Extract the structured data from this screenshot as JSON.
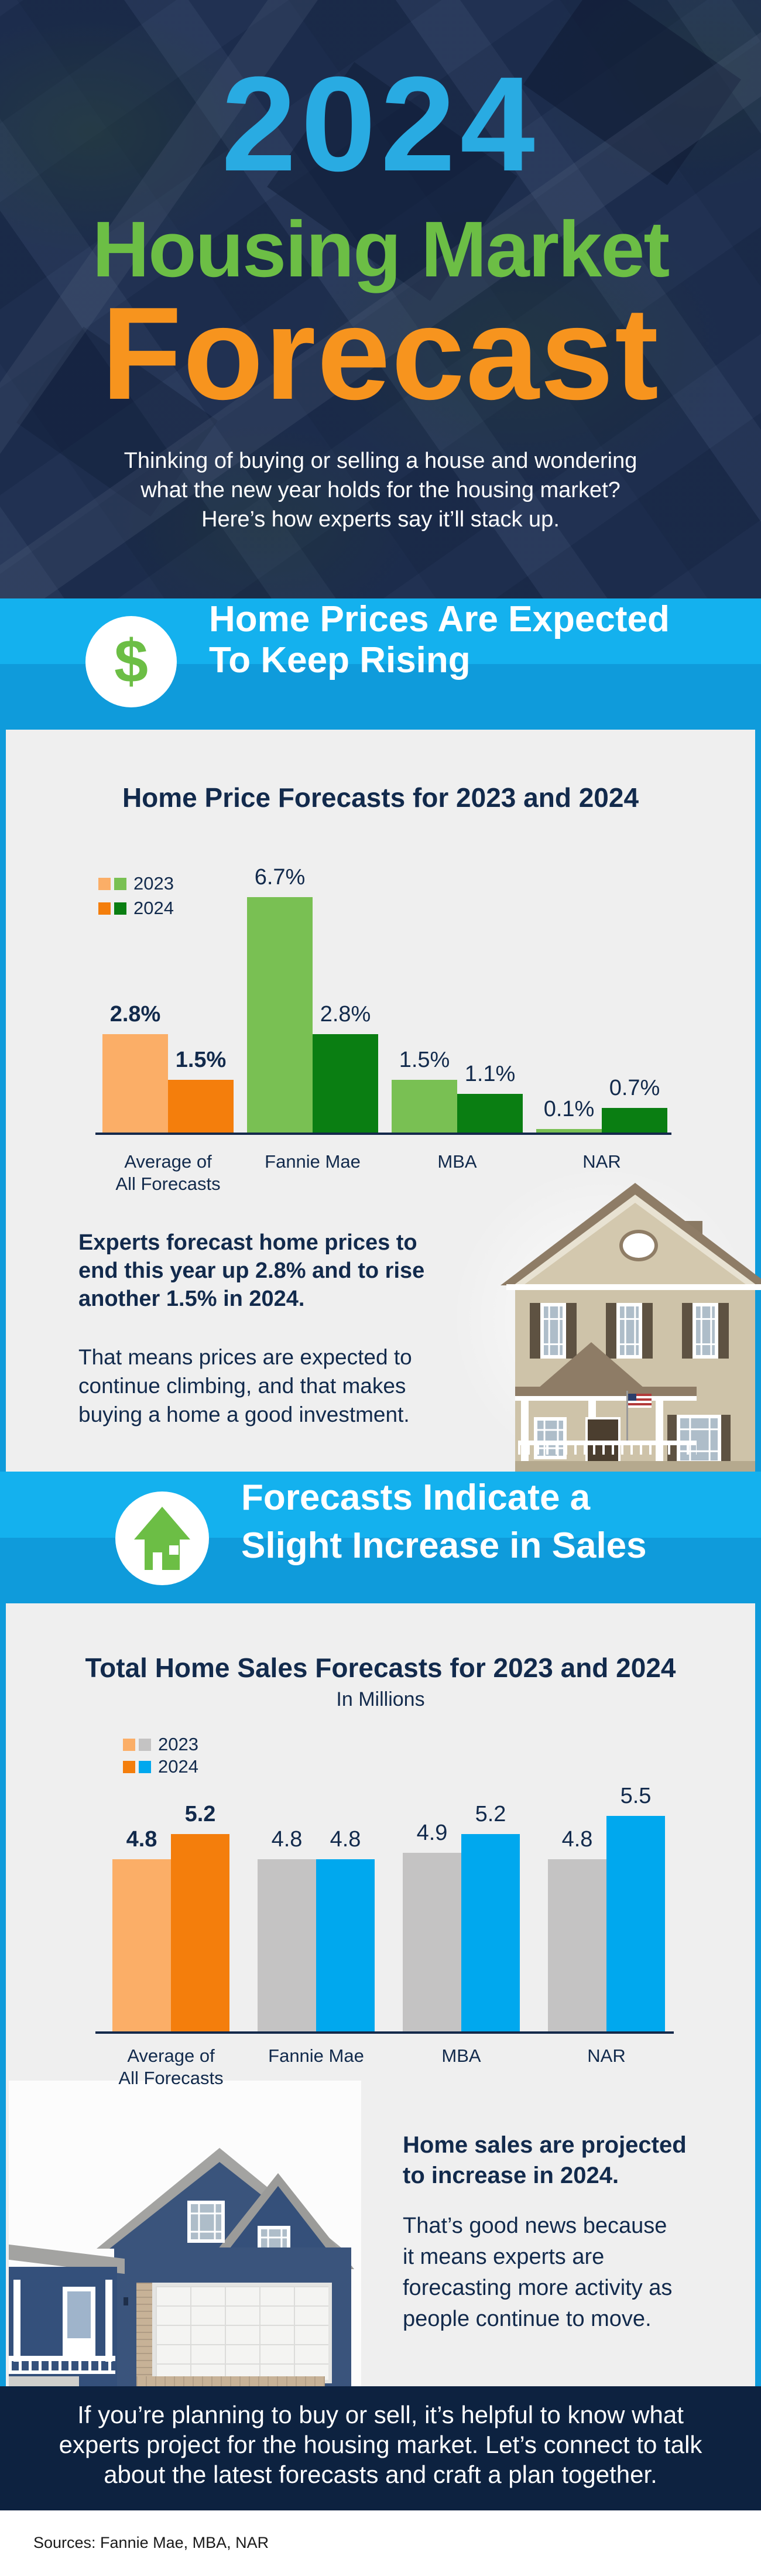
{
  "header": {
    "year": "2024",
    "title_market": "Housing Market",
    "title_forecast": "Forecast",
    "intro_lines": [
      "Thinking of buying or selling a house and wondering",
      "what the new year holds for the housing market?",
      "Here’s how experts say it’ll stack up."
    ]
  },
  "banners": [
    {
      "icon": "dollar-icon",
      "line1": "Home Prices Are Expected",
      "line2": "To Keep Rising"
    },
    {
      "icon": "house-up-arrow-icon",
      "line1": "Forecasts Indicate a",
      "line2": "Slight Increase in Sales"
    }
  ],
  "chart_data": [
    {
      "type": "bar",
      "title": "Home Price Forecasts for 2023 and 2024",
      "subtitle": "",
      "categories": [
        "Average of\nAll Forecasts",
        "Fannie Mae",
        "MBA",
        "NAR"
      ],
      "series": [
        {
          "name": "2023",
          "values": [
            2.8,
            6.7,
            1.5,
            0.1
          ],
          "labels": [
            "2.8%",
            "6.7%",
            "1.5%",
            "0.1%"
          ],
          "colors": [
            "#FBAE67",
            "#79C053",
            "#79C053",
            "#79C053"
          ],
          "legend_swatches": [
            "#FBAE67",
            "#79C053"
          ]
        },
        {
          "name": "2024",
          "values": [
            1.5,
            2.8,
            1.1,
            0.7
          ],
          "labels": [
            "1.5%",
            "2.8%",
            "1.1%",
            "0.7%"
          ],
          "colors": [
            "#F47E0C",
            "#0A7E12",
            "#0A7E12",
            "#0A7E12"
          ],
          "legend_swatches": [
            "#F47E0C",
            "#0A7E12"
          ]
        }
      ],
      "unit": "%",
      "grid": false,
      "legend_position": "upper-left",
      "ylim": [
        0,
        7
      ],
      "xlabel": "",
      "ylabel": ""
    },
    {
      "type": "bar",
      "title": "Total Home Sales Forecasts for 2023 and 2024",
      "subtitle": "In Millions",
      "categories": [
        "Average of\nAll Forecasts",
        "Fannie Mae",
        "MBA",
        "NAR"
      ],
      "series": [
        {
          "name": "2023",
          "values": [
            4.8,
            4.8,
            4.9,
            4.8
          ],
          "labels": [
            "4.8",
            "4.8",
            "4.9",
            "4.8"
          ],
          "colors": [
            "#FBAE67",
            "#C4C3C3",
            "#C4C3C3",
            "#C4C3C3"
          ],
          "legend_swatches": [
            "#FBAE67",
            "#C4C3C3"
          ]
        },
        {
          "name": "2024",
          "values": [
            5.2,
            4.8,
            5.2,
            5.5
          ],
          "labels": [
            "5.2",
            "4.8",
            "5.2",
            "5.5"
          ],
          "colors": [
            "#F47E0C",
            "#00A8EE",
            "#00A8EE",
            "#00A8EE"
          ],
          "legend_swatches": [
            "#F47E0C",
            "#00A8EE"
          ]
        }
      ],
      "unit": "millions",
      "grid": false,
      "legend_position": "upper-left",
      "ylim": [
        0,
        6
      ],
      "xlabel": "",
      "ylabel": ""
    }
  ],
  "callouts": [
    {
      "bold_lines": [
        "Experts forecast home prices to",
        "end this year up 2.8% and to rise",
        "another 1.5% in 2024."
      ],
      "body_lines": [
        "That means prices are expected to",
        "continue climbing, and that makes",
        "buying a home a good investment."
      ]
    },
    {
      "bold_lines": [
        "Home sales are projected",
        "to increase in 2024."
      ],
      "body_lines": [
        "That’s good news because",
        "it means experts are",
        "forecasting more activity as",
        "people continue to move."
      ]
    }
  ],
  "footer": {
    "lines": [
      "If you’re planning to buy or sell, it’s helpful to know what",
      "experts project for the housing market. Let’s connect to talk",
      "about the latest forecasts and craft a plan together."
    ]
  },
  "sources": "Sources: Fannie Mae, MBA, NAR",
  "colors": {
    "accent_blue": "#29ABE2",
    "accent_green": "#6CBE45",
    "accent_orange": "#F7941E",
    "banner_blue_top": "#14B1EE",
    "banner_blue_bottom": "#0F9BDB",
    "navy_text": "#122A4C",
    "footer_navy": "#0D2240",
    "panel_gray": "#EFEFEF",
    "bar_light_orange": "#FBAE67",
    "bar_orange": "#F47E0C",
    "bar_light_green": "#79C053",
    "bar_dark_green": "#0A7E12",
    "bar_gray": "#C4C3C3",
    "bar_blue": "#00A8EE"
  }
}
